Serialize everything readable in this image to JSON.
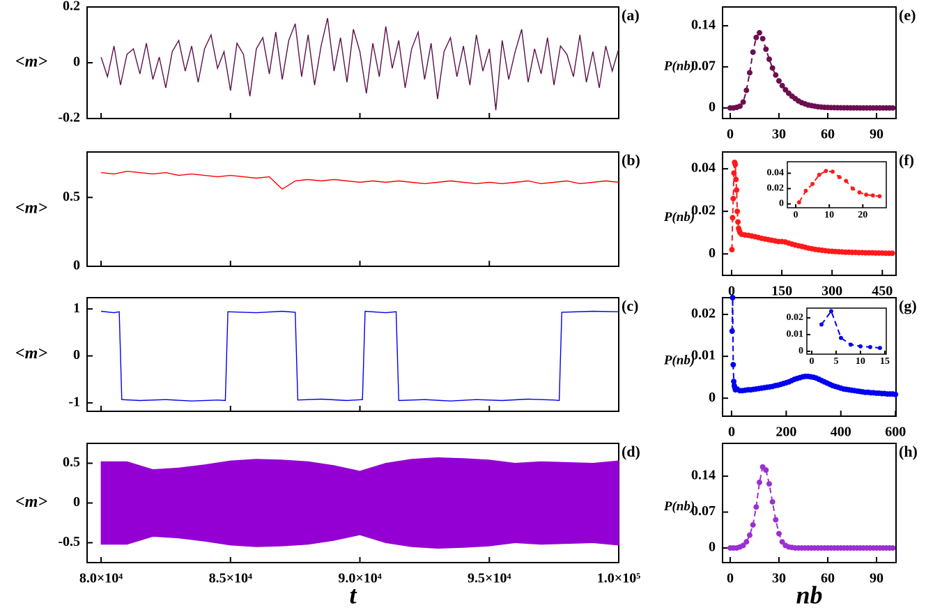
{
  "chart_data": [
    {
      "type": "line",
      "label": "(a)",
      "ylabel": "<m>",
      "color": "#5c0f4a",
      "marker": false,
      "dashed": false,
      "xlim": [
        79460,
        100000
      ],
      "ylim": [
        -0.2,
        0.2
      ],
      "yticks": [
        -0.2,
        0,
        0.2
      ],
      "x": [
        80000,
        80250,
        80500,
        80750,
        81000,
        81250,
        81500,
        81750,
        82000,
        82250,
        82500,
        82750,
        83000,
        83250,
        83500,
        83750,
        84000,
        84250,
        84500,
        84750,
        85000,
        85250,
        85500,
        85750,
        86000,
        86250,
        86500,
        86750,
        87000,
        87250,
        87500,
        87750,
        88000,
        88250,
        88500,
        88750,
        89000,
        89250,
        89500,
        89750,
        90000,
        90250,
        90500,
        90750,
        91000,
        91250,
        91500,
        91750,
        92000,
        92250,
        92500,
        92750,
        93000,
        93250,
        93500,
        93750,
        94000,
        94250,
        94500,
        94750,
        95000,
        95250,
        95500,
        95750,
        96000,
        96250,
        96500,
        96750,
        97000,
        97250,
        97500,
        97750,
        98000,
        98250,
        98500,
        98750,
        99000,
        99250,
        99500,
        99750,
        100000
      ],
      "values": [
        0.02,
        -0.05,
        0.06,
        -0.08,
        0.03,
        0.05,
        -0.04,
        0.07,
        -0.06,
        0.02,
        -0.09,
        0.04,
        0.08,
        -0.03,
        0.06,
        -0.07,
        0.05,
        0.1,
        -0.02,
        0.04,
        -0.1,
        0.07,
        0.03,
        -0.12,
        0.05,
        0.09,
        -0.04,
        0.11,
        -0.06,
        0.08,
        0.14,
        -0.05,
        0.1,
        -0.08,
        0.06,
        0.16,
        -0.03,
        0.09,
        -0.07,
        0.12,
        0.04,
        -0.11,
        0.07,
        -0.05,
        0.13,
        -0.02,
        0.08,
        -0.09,
        0.05,
        0.11,
        -0.06,
        0.07,
        -0.13,
        0.04,
        0.09,
        -0.05,
        0.06,
        -0.08,
        0.1,
        -0.03,
        0.05,
        -0.17,
        0.08,
        -0.06,
        0.04,
        0.12,
        -0.07,
        0.05,
        -0.04,
        0.09,
        -0.08,
        0.06,
        0.03,
        -0.05,
        0.1,
        -0.07,
        0.04,
        -0.09,
        0.06,
        -0.03,
        0.05
      ]
    },
    {
      "type": "line",
      "label": "(b)",
      "ylabel": "<m>",
      "color": "#ff0000",
      "marker": false,
      "dashed": false,
      "xlim": [
        79460,
        100000
      ],
      "ylim": [
        0,
        0.83
      ],
      "yticks": [
        0,
        0.5
      ],
      "x": [
        80000,
        80500,
        81000,
        81500,
        82000,
        82500,
        83000,
        83500,
        84000,
        84500,
        85000,
        85500,
        86000,
        86500,
        87000,
        87500,
        88000,
        88500,
        89000,
        89500,
        90000,
        90500,
        91000,
        91500,
        92000,
        92500,
        93000,
        93500,
        94000,
        94500,
        95000,
        95500,
        96000,
        96500,
        97000,
        97500,
        98000,
        98500,
        99000,
        99500,
        100000
      ],
      "values": [
        0.68,
        0.67,
        0.69,
        0.68,
        0.67,
        0.68,
        0.66,
        0.67,
        0.66,
        0.65,
        0.66,
        0.65,
        0.64,
        0.65,
        0.56,
        0.62,
        0.63,
        0.62,
        0.63,
        0.62,
        0.61,
        0.62,
        0.61,
        0.62,
        0.61,
        0.6,
        0.61,
        0.62,
        0.61,
        0.6,
        0.61,
        0.6,
        0.61,
        0.62,
        0.6,
        0.61,
        0.62,
        0.6,
        0.61,
        0.62,
        0.61
      ]
    },
    {
      "type": "line",
      "label": "(c)",
      "ylabel": "<m>",
      "color": "#0000ee",
      "marker": false,
      "dashed": false,
      "xlim": [
        79460,
        100000
      ],
      "ylim": [
        -1.18,
        1.24
      ],
      "yticks": [
        -1,
        0,
        1
      ],
      "x": [
        80000,
        80500,
        80700,
        80800,
        81500,
        82500,
        83500,
        84500,
        84800,
        84900,
        86000,
        87000,
        87500,
        87600,
        88500,
        89500,
        90100,
        90200,
        91000,
        91400,
        91500,
        92500,
        93500,
        94500,
        95500,
        96500,
        97500,
        97700,
        97800,
        99000,
        100000
      ],
      "values": [
        0.95,
        0.92,
        0.94,
        -0.93,
        -0.95,
        -0.93,
        -0.96,
        -0.94,
        -0.95,
        0.94,
        0.92,
        0.95,
        0.93,
        -0.94,
        -0.92,
        -0.95,
        -0.93,
        0.95,
        0.92,
        0.94,
        -0.95,
        -0.93,
        -0.96,
        -0.93,
        -0.95,
        -0.92,
        -0.94,
        -0.95,
        0.93,
        0.95,
        0.94
      ]
    },
    {
      "type": "area",
      "label": "(d)",
      "ylabel": "<m>",
      "xlabel": "t",
      "color": "#9400d3",
      "xlim": [
        79460,
        100000
      ],
      "ylim": [
        -0.75,
        0.75
      ],
      "yticks": [
        -0.5,
        0,
        0.5
      ],
      "xticks": [
        {
          "value": 80000,
          "label": "8.0×10⁴"
        },
        {
          "value": 85000,
          "label": "8.5×10⁴"
        },
        {
          "value": 90000,
          "label": "9.0×10⁴"
        },
        {
          "value": 95000,
          "label": "9.5×10⁴"
        },
        {
          "value": 100000,
          "label": "1.0×10⁵"
        }
      ],
      "x": [
        80000,
        81000,
        82000,
        83000,
        84000,
        85000,
        86000,
        87000,
        88000,
        89000,
        90000,
        91000,
        92000,
        93000,
        94000,
        95000,
        96000,
        97000,
        98000,
        99000,
        100000
      ],
      "upper": [
        0.52,
        0.52,
        0.42,
        0.44,
        0.48,
        0.53,
        0.55,
        0.54,
        0.52,
        0.47,
        0.4,
        0.5,
        0.55,
        0.57,
        0.56,
        0.54,
        0.5,
        0.52,
        0.51,
        0.5,
        0.53
      ],
      "lower": [
        -0.52,
        -0.52,
        -0.42,
        -0.44,
        -0.48,
        -0.53,
        -0.55,
        -0.54,
        -0.52,
        -0.47,
        -0.4,
        -0.5,
        -0.55,
        -0.57,
        -0.56,
        -0.54,
        -0.5,
        -0.52,
        -0.51,
        -0.5,
        -0.53
      ]
    },
    {
      "type": "line",
      "label": "(e)",
      "ylabel": "P(nb)",
      "color": "#6b0f50",
      "marker": true,
      "dashed": true,
      "xlim": [
        -4.7,
        102
      ],
      "ylim": [
        -0.018,
        0.172
      ],
      "xticks": [
        0,
        30,
        60,
        90
      ],
      "yticks": [
        0,
        0.07,
        0.14
      ],
      "x": [
        0,
        2,
        4,
        6,
        8,
        10,
        12,
        14,
        16,
        18,
        20,
        22,
        24,
        26,
        28,
        30,
        32,
        34,
        36,
        38,
        40,
        42,
        44,
        46,
        48,
        50,
        52,
        54,
        56,
        58,
        60,
        62,
        64,
        66,
        68,
        70,
        72,
        74,
        76,
        78,
        80,
        82,
        84,
        86,
        88,
        90,
        92,
        94,
        96,
        98,
        100
      ],
      "values": [
        0,
        0,
        0.001,
        0.003,
        0.01,
        0.03,
        0.06,
        0.095,
        0.12,
        0.128,
        0.118,
        0.1,
        0.083,
        0.068,
        0.056,
        0.046,
        0.038,
        0.031,
        0.025,
        0.02,
        0.016,
        0.012,
        0.009,
        0.007,
        0.005,
        0.004,
        0.003,
        0.002,
        0.0015,
        0.001,
        0.0008,
        0.0006,
        0.0005,
        0.0004,
        0.0003,
        0.0002,
        0.0002,
        0.0001,
        0.0001,
        0.0001,
        0,
        0,
        0,
        0,
        0,
        0,
        0,
        0,
        0,
        0,
        0
      ]
    },
    {
      "type": "line",
      "label": "(f)",
      "ylabel": "P(nb)",
      "color": "#ff1a1a",
      "marker": true,
      "dashed": true,
      "xlim": [
        -27,
        491
      ],
      "ylim": [
        -0.0101,
        0.0479
      ],
      "xticks": [
        0,
        150,
        300,
        450
      ],
      "yticks": [
        0,
        0.02,
        0.04
      ],
      "x": [
        1,
        3,
        5,
        7,
        9,
        11,
        13,
        15,
        17,
        19,
        21,
        23,
        25,
        30,
        40,
        50,
        60,
        70,
        80,
        90,
        100,
        110,
        120,
        130,
        140,
        150,
        160,
        170,
        180,
        190,
        200,
        210,
        220,
        230,
        240,
        250,
        260,
        270,
        280,
        290,
        300,
        310,
        320,
        330,
        340,
        350,
        360,
        370,
        380,
        390,
        400,
        410,
        420,
        430,
        440,
        450,
        460,
        470,
        480
      ],
      "values": [
        0.002,
        0.017,
        0.026,
        0.038,
        0.043,
        0.042,
        0.035,
        0.03,
        0.02,
        0.015,
        0.012,
        0.011,
        0.01,
        0.0092,
        0.0089,
        0.0087,
        0.0084,
        0.0081,
        0.0077,
        0.0073,
        0.007,
        0.0067,
        0.0064,
        0.0061,
        0.0058,
        0.0058,
        0.0056,
        0.0051,
        0.0046,
        0.0042,
        0.0038,
        0.0035,
        0.0031,
        0.0027,
        0.0024,
        0.0021,
        0.0019,
        0.0017,
        0.0015,
        0.0013,
        0.0012,
        0.0011,
        0.001,
        0.0009,
        0.0008,
        0.0008,
        0.0007,
        0.0007,
        0.0006,
        0.0006,
        0.0005,
        0.0005,
        0.0005,
        0.0004,
        0.0004,
        0.0004,
        0.0003,
        0.0003,
        0.0003
      ],
      "inset": {
        "xlim": [
          -2.5,
          27
        ],
        "ylim": [
          -0.005,
          0.055
        ],
        "xticks": [
          0,
          10,
          20
        ],
        "yticks": [
          0,
          0.02,
          0.04
        ]
      }
    },
    {
      "type": "line",
      "label": "(g)",
      "ylabel": "P(nb)",
      "color": "#0000ee",
      "marker": true,
      "dashed": true,
      "xlim": [
        -33,
        602
      ],
      "ylim": [
        -0.0043,
        0.024
      ],
      "xticks": [
        0,
        200,
        400,
        600
      ],
      "yticks": [
        0,
        0.01,
        0.02
      ],
      "x": [
        2,
        4,
        6,
        8,
        10,
        12,
        14,
        20,
        30,
        40,
        50,
        60,
        70,
        80,
        90,
        100,
        110,
        120,
        130,
        140,
        150,
        160,
        170,
        180,
        190,
        200,
        210,
        220,
        230,
        240,
        250,
        260,
        270,
        280,
        290,
        300,
        310,
        320,
        330,
        340,
        350,
        360,
        370,
        380,
        390,
        400,
        410,
        420,
        430,
        440,
        450,
        460,
        470,
        480,
        490,
        500,
        510,
        520,
        530,
        540,
        550,
        560,
        570,
        580,
        590,
        600
      ],
      "values": [
        0.016,
        0.024,
        0.008,
        0.004,
        0.003,
        0.0025,
        0.002,
        0.0022,
        0.0018,
        0.0018,
        0.0019,
        0.002,
        0.002,
        0.0021,
        0.0022,
        0.0023,
        0.0024,
        0.0025,
        0.0026,
        0.0027,
        0.0028,
        0.003,
        0.0031,
        0.0033,
        0.0035,
        0.0037,
        0.0039,
        0.0042,
        0.0045,
        0.0047,
        0.0049,
        0.0051,
        0.0052,
        0.0052,
        0.0051,
        0.005,
        0.0048,
        0.0045,
        0.0042,
        0.0039,
        0.0036,
        0.0033,
        0.003,
        0.0028,
        0.0026,
        0.0024,
        0.0022,
        0.0021,
        0.002,
        0.0019,
        0.0018,
        0.0017,
        0.0016,
        0.0015,
        0.0014,
        0.0014,
        0.0013,
        0.0013,
        0.0012,
        0.0012,
        0.0011,
        0.0011,
        0.001,
        0.001,
        0.001,
        0.0009
      ],
      "inset": {
        "xlim": [
          -1,
          15.3
        ],
        "ylim": [
          -0.0017,
          0.0258
        ],
        "xticks": [
          0,
          5,
          10,
          15
        ],
        "yticks": [
          0,
          0.01,
          0.02
        ]
      }
    },
    {
      "type": "line",
      "label": "(h)",
      "ylabel": "P(nb)",
      "xlabel": "nb",
      "color": "#9b30d0",
      "marker": true,
      "dashed": true,
      "xlim": [
        -4.7,
        102
      ],
      "ylim": [
        -0.0285,
        0.204
      ],
      "xticks": [
        0,
        30,
        60,
        90
      ],
      "yticks": [
        0,
        0.07,
        0.14
      ],
      "x": [
        0,
        2,
        4,
        6,
        8,
        10,
        12,
        14,
        16,
        18,
        20,
        22,
        24,
        26,
        28,
        30,
        32,
        34,
        36,
        38,
        40,
        42,
        44,
        46,
        48,
        50,
        52,
        54,
        56,
        58,
        60,
        62,
        64,
        66,
        68,
        70,
        72,
        74,
        76,
        78,
        80,
        82,
        84,
        86,
        88,
        90,
        92,
        94,
        96,
        98,
        100
      ],
      "values": [
        0,
        0,
        0,
        0.002,
        0.005,
        0.012,
        0.025,
        0.045,
        0.08,
        0.128,
        0.158,
        0.152,
        0.125,
        0.09,
        0.055,
        0.028,
        0.012,
        0.005,
        0.002,
        0.001,
        0,
        0,
        0,
        0,
        0,
        0,
        0,
        0,
        0,
        0,
        0,
        0,
        0,
        0,
        0,
        0,
        0,
        0,
        0,
        0,
        0,
        0,
        0,
        0,
        0,
        0,
        0,
        0,
        0,
        0,
        0
      ]
    }
  ]
}
